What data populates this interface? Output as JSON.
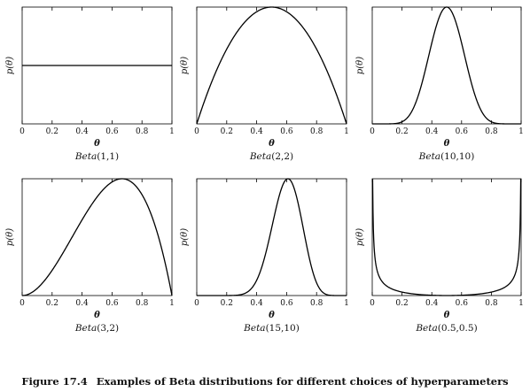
{
  "caption": {
    "figure_number": "Figure 17.4",
    "text": "Examples of Beta distributions for different choices of hyperparameters"
  },
  "chart_data": [
    {
      "type": "line",
      "title": "Beta(1,1)",
      "title_name": "Beta",
      "title_args": "(1,1)",
      "alpha": 1,
      "beta": 1,
      "xlabel": "θ",
      "ylabel": "p(θ)",
      "xlim": [
        0,
        1
      ],
      "xticks": [
        "0",
        "0.2",
        "0.4",
        "0.6",
        "0.8",
        "1"
      ]
    },
    {
      "type": "line",
      "title": "Beta(2,2)",
      "title_name": "Beta",
      "title_args": "(2,2)",
      "alpha": 2,
      "beta": 2,
      "xlabel": "θ",
      "ylabel": "p(θ)",
      "xlim": [
        0,
        1
      ],
      "xticks": [
        "0",
        "0.2",
        "0.4",
        "0.6",
        "0.8",
        "1"
      ]
    },
    {
      "type": "line",
      "title": "Beta(10,10)",
      "title_name": "Beta",
      "title_args": "(10,10)",
      "alpha": 10,
      "beta": 10,
      "xlabel": "θ",
      "ylabel": "p(θ)",
      "xlim": [
        0,
        1
      ],
      "xticks": [
        "0",
        "0.2",
        "0.4",
        "0.6",
        "0.8",
        "1"
      ]
    },
    {
      "type": "line",
      "title": "Beta(3,2)",
      "title_name": "Beta",
      "title_args": "(3,2)",
      "alpha": 3,
      "beta": 2,
      "xlabel": "θ",
      "ylabel": "p(θ)",
      "xlim": [
        0,
        1
      ],
      "xticks": [
        "0",
        "0.2",
        "0.4",
        "0.6",
        "0.8",
        "1"
      ]
    },
    {
      "type": "line",
      "title": "Beta(15,10)",
      "title_name": "Beta",
      "title_args": "(15,10)",
      "alpha": 15,
      "beta": 10,
      "xlabel": "θ",
      "ylabel": "p(θ)",
      "xlim": [
        0,
        1
      ],
      "xticks": [
        "0",
        "0.2",
        "0.4",
        "0.6",
        "0.8",
        "1"
      ]
    },
    {
      "type": "line",
      "title": "Beta(0.5,0.5)",
      "title_name": "Beta",
      "title_args": "(0.5,0.5)",
      "alpha": 0.5,
      "beta": 0.5,
      "xlabel": "θ",
      "ylabel": "p(θ)",
      "xlim": [
        0,
        1
      ],
      "xticks": [
        "0",
        "0.2",
        "0.4",
        "0.6",
        "0.8",
        "1"
      ]
    }
  ]
}
